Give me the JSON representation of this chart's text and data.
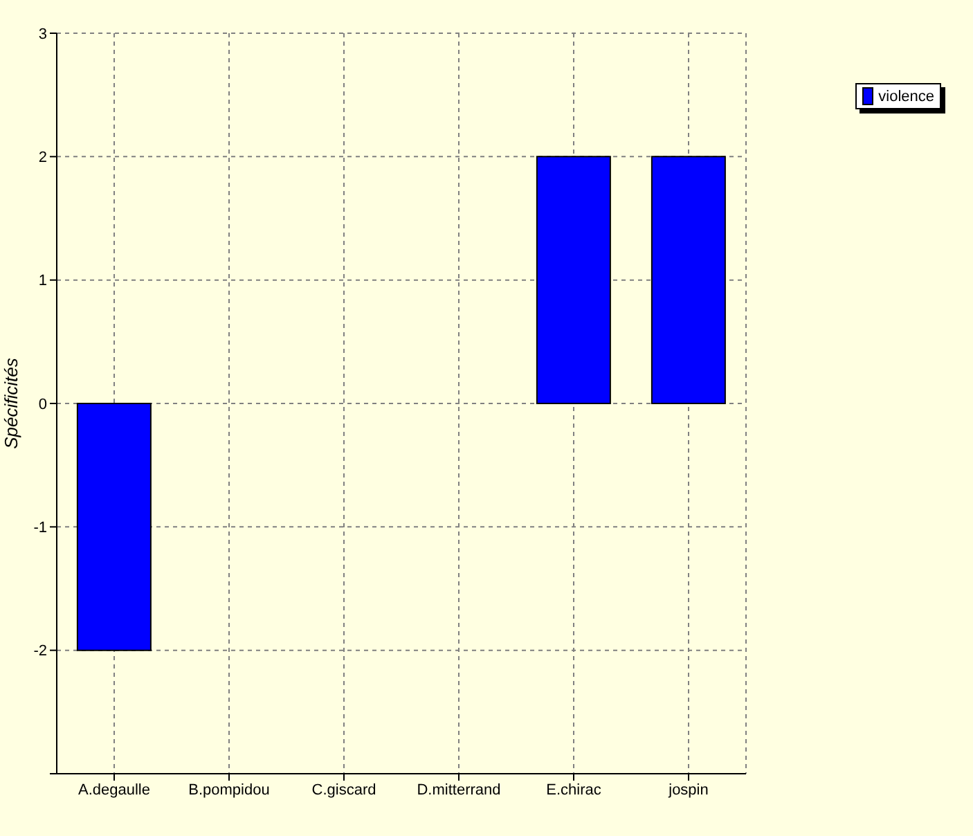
{
  "chart_data": {
    "type": "bar",
    "ylabel": "Spécificités",
    "categories": [
      "A.degaulle",
      "B.pompidou",
      "C.giscard",
      "D.mitterrand",
      "E.chirac",
      "jospin"
    ],
    "series": [
      {
        "name": "violence",
        "color": "#0000ff",
        "values": [
          -2,
          0,
          0,
          0,
          2,
          2
        ]
      }
    ],
    "ylim": [
      -3,
      3
    ],
    "yticks": [
      {
        "value": -3,
        "label": null
      },
      -2,
      -1,
      0,
      1,
      2,
      3
    ],
    "grid": true,
    "legend": "top right"
  }
}
